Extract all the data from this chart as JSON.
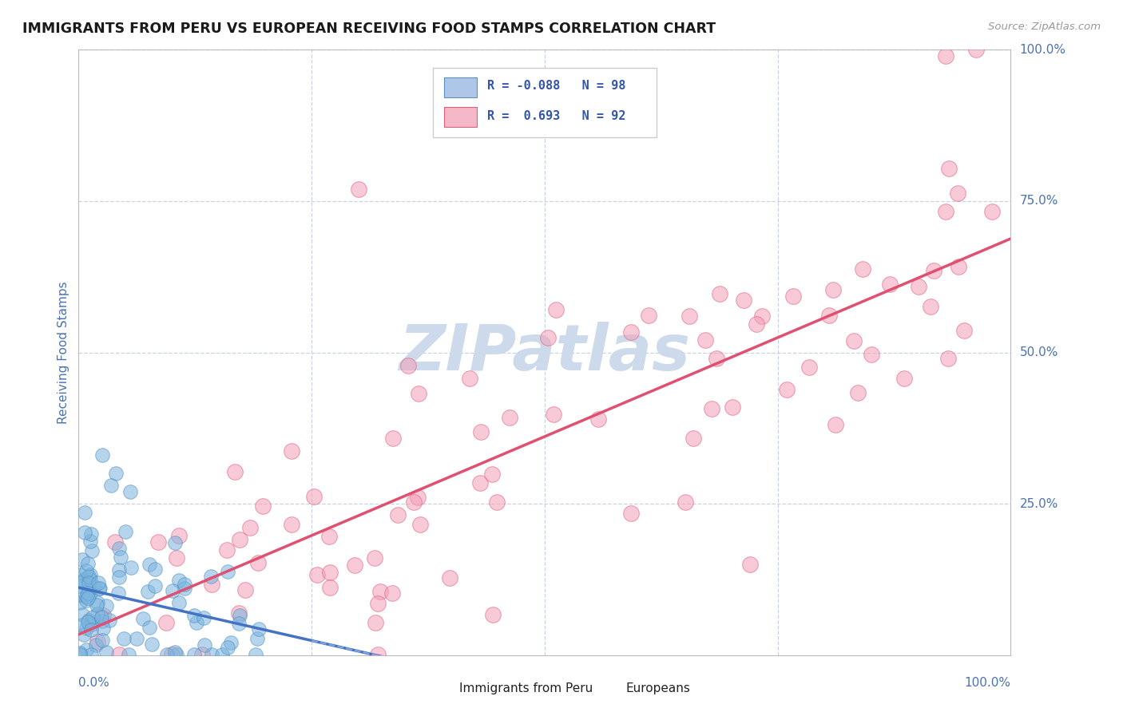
{
  "title": "IMMIGRANTS FROM PERU VS EUROPEAN RECEIVING FOOD STAMPS CORRELATION CHART",
  "source": "Source: ZipAtlas.com",
  "ylabel": "Receiving Food Stamps",
  "series1": {
    "name": "Immigrants from Peru",
    "dot_color": "#7ab4df",
    "dot_edge": "#5090c0",
    "R": -0.088,
    "N": 98,
    "line_color": "#4472c4",
    "line_style": "-"
  },
  "series2": {
    "name": "Europeans",
    "dot_color": "#f4a0b8",
    "dot_edge": "#e0607a",
    "R": 0.693,
    "N": 92,
    "line_color": "#e05070",
    "line_style": "-"
  },
  "watermark_color": "#ccdaeb",
  "background_color": "#ffffff",
  "grid_color": "#c8d4e4",
  "tick_color": "#4a72b0",
  "title_color": "#1a1a1a",
  "legend_blue_face": "#aec6e8",
  "legend_blue_edge": "#5a90c8",
  "legend_pink_face": "#f4b8c8",
  "legend_pink_edge": "#e0607a",
  "legend_text_color": "#3355aa"
}
